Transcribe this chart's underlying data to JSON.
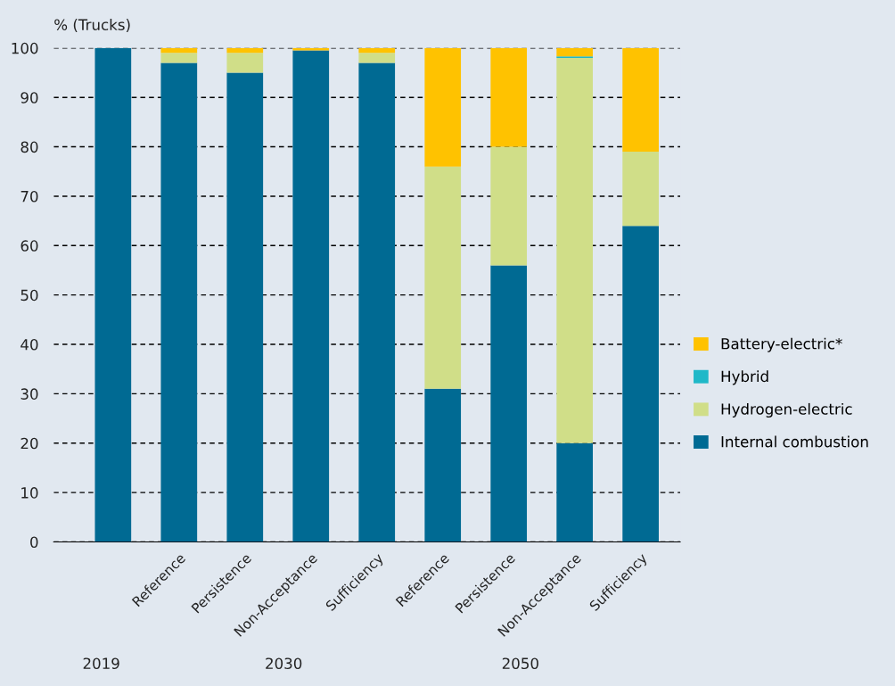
{
  "chart_data": {
    "type": "bar",
    "ylabel": "% (Trucks)",
    "stacked": true,
    "categories": [
      null,
      "Reference",
      "Persistence",
      "Non-Acceptance",
      "Sufficiency",
      "Reference",
      "Persistence",
      "Non-Acceptance",
      "Sufficiency"
    ],
    "series": [
      {
        "name": "Internal combustion",
        "color": "#006a93",
        "values": [
          100,
          97,
          95,
          99.5,
          97,
          31,
          56,
          20,
          64
        ]
      },
      {
        "name": "Hydrogen-electric",
        "color": "#d0de88",
        "values": [
          0,
          2,
          4,
          0,
          2,
          45,
          24,
          78,
          15
        ]
      },
      {
        "name": "Hybrid",
        "color": "#1fb8c8",
        "values": [
          0,
          0,
          0,
          0,
          0,
          0,
          0,
          0.3,
          0
        ]
      },
      {
        "name": "Battery-electric*",
        "color": "#ffc200",
        "values": [
          0,
          1,
          1,
          0.5,
          1,
          24,
          20,
          1.7,
          21
        ]
      }
    ],
    "ylim": [
      0,
      100
    ],
    "yticks": [
      0,
      10,
      20,
      30,
      40,
      50,
      60,
      70,
      80,
      90,
      100
    ],
    "grid": "y",
    "legend": "right",
    "annotations": [
      "2019",
      "2030",
      "2050"
    ]
  }
}
